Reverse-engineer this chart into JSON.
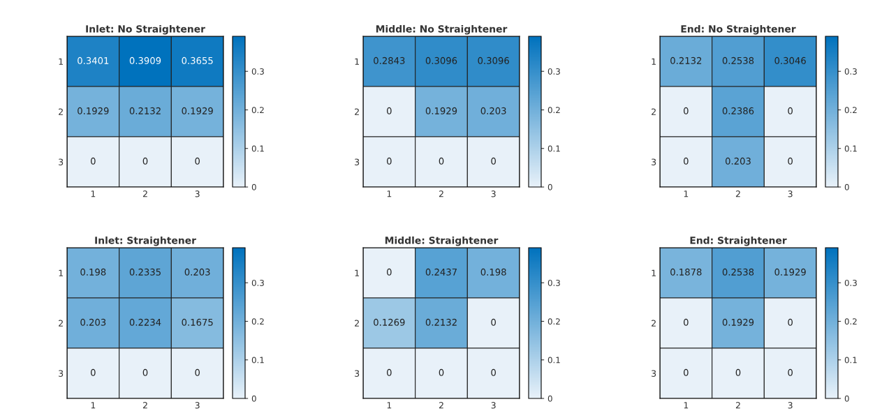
{
  "chart_data": [
    {
      "type": "heatmap",
      "title": "Inlet: No Straightener",
      "categories": [
        "1",
        "2",
        "3"
      ],
      "y_categories": [
        "1",
        "2",
        "3"
      ],
      "cells": [
        [
          0.3401,
          0.3909,
          0.3655
        ],
        [
          0.1929,
          0.2132,
          0.1929
        ],
        [
          0,
          0,
          0
        ]
      ],
      "clim": [
        0,
        0.3909
      ],
      "cticks": [
        0,
        0.1,
        0.2,
        0.3
      ],
      "data_labels": true
    },
    {
      "type": "heatmap",
      "title": "Middle: No Straightener",
      "categories": [
        "1",
        "2",
        "3"
      ],
      "y_categories": [
        "1",
        "2",
        "3"
      ],
      "cells": [
        [
          0.2843,
          0.3096,
          0.3096
        ],
        [
          0,
          0.1929,
          0.203
        ],
        [
          0,
          0,
          0
        ]
      ],
      "clim": [
        0,
        0.3909
      ],
      "cticks": [
        0,
        0.1,
        0.2,
        0.3
      ],
      "data_labels": true
    },
    {
      "type": "heatmap",
      "title": "End: No Straightener",
      "categories": [
        "1",
        "2",
        "3"
      ],
      "y_categories": [
        "1",
        "2",
        "3"
      ],
      "cells": [
        [
          0.2132,
          0.2538,
          0.3046
        ],
        [
          0,
          0.2386,
          0
        ],
        [
          0,
          0.203,
          0
        ]
      ],
      "clim": [
        0,
        0.3909
      ],
      "cticks": [
        0,
        0.1,
        0.2,
        0.3
      ],
      "data_labels": true
    },
    {
      "type": "heatmap",
      "title": "Inlet: Straightener",
      "categories": [
        "1",
        "2",
        "3"
      ],
      "y_categories": [
        "1",
        "2",
        "3"
      ],
      "cells": [
        [
          0.198,
          0.2335,
          0.203
        ],
        [
          0.203,
          0.2234,
          0.1675
        ],
        [
          0,
          0,
          0
        ]
      ],
      "clim": [
        0,
        0.3909
      ],
      "cticks": [
        0,
        0.1,
        0.2,
        0.3
      ],
      "data_labels": true
    },
    {
      "type": "heatmap",
      "title": "Middle: Straightener",
      "categories": [
        "1",
        "2",
        "3"
      ],
      "y_categories": [
        "1",
        "2",
        "3"
      ],
      "cells": [
        [
          0,
          0.2437,
          0.198
        ],
        [
          0.1269,
          0.2132,
          0
        ],
        [
          0,
          0,
          0
        ]
      ],
      "clim": [
        0,
        0.3909
      ],
      "cticks": [
        0,
        0.1,
        0.2,
        0.3
      ],
      "data_labels": true
    },
    {
      "type": "heatmap",
      "title": "End: Straightener",
      "categories": [
        "1",
        "2",
        "3"
      ],
      "y_categories": [
        "1",
        "2",
        "3"
      ],
      "cells": [
        [
          0.1878,
          0.2538,
          0.1929
        ],
        [
          0,
          0.1929,
          0
        ],
        [
          0,
          0,
          0
        ]
      ],
      "clim": [
        0,
        0.3909
      ],
      "cticks": [
        0,
        0.1,
        0.2,
        0.3
      ],
      "data_labels": true
    }
  ]
}
